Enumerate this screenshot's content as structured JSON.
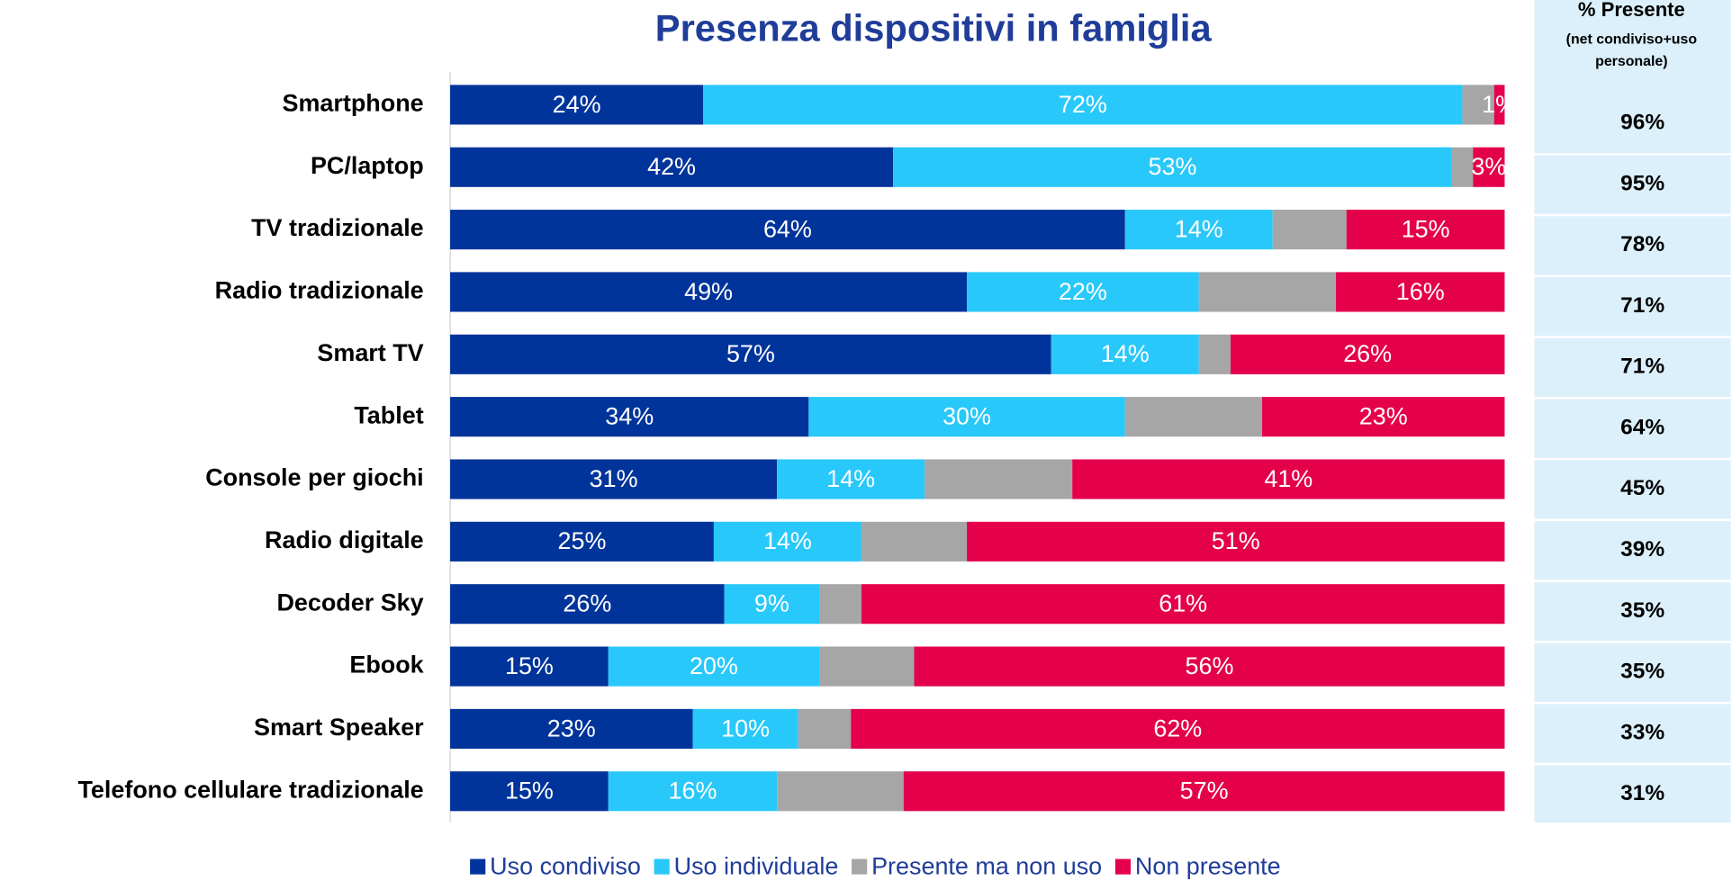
{
  "chart_data": {
    "type": "stacked-bar-horizontal",
    "title": "Presenza dispositivi in famiglia",
    "categories": [
      "Smartphone",
      "PC/laptop",
      "TV tradizionale",
      "Radio tradizionale",
      "Smart TV",
      "Tablet",
      "Console per giochi",
      "Radio digitale",
      "Decoder Sky",
      "Ebook",
      "Smart Speaker",
      "Telefono cellulare tradizionale"
    ],
    "xlim": [
      0,
      100
    ],
    "series": [
      {
        "name": "Uso condiviso",
        "color": "#00349a",
        "values": [
          24,
          42,
          64,
          49,
          57,
          34,
          31,
          25,
          26,
          15,
          23,
          15
        ],
        "value_labels": [
          "24%",
          "42%",
          "64%",
          "49%",
          "57%",
          "34%",
          "31%",
          "25%",
          "26%",
          "15%",
          "23%",
          "15%"
        ]
      },
      {
        "name": "Uso individuale",
        "color": "#29c8fa",
        "values": [
          72,
          53,
          14,
          22,
          14,
          30,
          14,
          14,
          9,
          20,
          10,
          16
        ],
        "value_labels": [
          "72%",
          "53%",
          "14%",
          "22%",
          "14%",
          "30%",
          "14%",
          "14%",
          "9%",
          "20%",
          "10%",
          "16%"
        ]
      },
      {
        "name": "Presente ma non uso",
        "color": "#a6a6a6",
        "values": [
          3,
          2,
          7,
          13,
          3,
          13,
          14,
          10,
          4,
          9,
          5,
          12
        ]
      },
      {
        "name": "Non presente",
        "color": "#e4004b",
        "values": [
          1,
          3,
          15,
          16,
          26,
          23,
          41,
          51,
          61,
          56,
          62,
          57
        ],
        "value_labels": [
          "1%",
          "3%",
          "15%",
          "16%",
          "26%",
          "23%",
          "41%",
          "51%",
          "61%",
          "56%",
          "62%",
          "57%"
        ]
      }
    ],
    "side_column": {
      "title": "% Presente",
      "subtitle_lines": [
        "(net condiviso+uso",
        "personale)"
      ],
      "values": [
        96,
        95,
        78,
        71,
        71,
        64,
        45,
        39,
        35,
        35,
        33,
        31
      ],
      "value_labels": [
        "96%",
        "95%",
        "78%",
        "71%",
        "71%",
        "64%",
        "45%",
        "39%",
        "35%",
        "35%",
        "33%",
        "31%"
      ]
    },
    "legend": "bottom"
  }
}
